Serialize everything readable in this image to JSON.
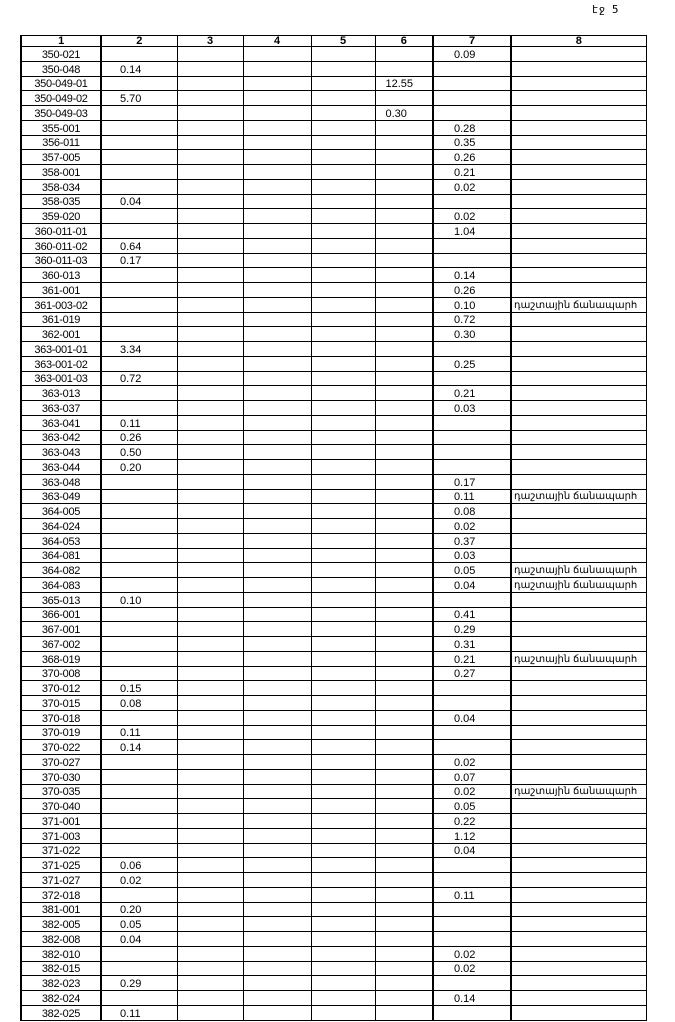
{
  "page_number": "էջ 5",
  "columns": [
    "1",
    "2",
    "3",
    "4",
    "5",
    "6",
    "7",
    "8"
  ],
  "rows": [
    [
      "350-021",
      "",
      "",
      "",
      "",
      "",
      "0.09",
      ""
    ],
    [
      "350-048",
      "0.14",
      "",
      "",
      "",
      "",
      "",
      ""
    ],
    [
      "350-049-01",
      "",
      "",
      "",
      "",
      "12.55",
      "",
      ""
    ],
    [
      "350-049-02",
      "5.70",
      "",
      "",
      "",
      "",
      "",
      ""
    ],
    [
      "350-049-03",
      "",
      "",
      "",
      "",
      "0.30",
      "",
      ""
    ],
    [
      "355-001",
      "",
      "",
      "",
      "",
      "",
      "0.28",
      ""
    ],
    [
      "356-011",
      "",
      "",
      "",
      "",
      "",
      "0.35",
      ""
    ],
    [
      "357-005",
      "",
      "",
      "",
      "",
      "",
      "0.26",
      ""
    ],
    [
      "358-001",
      "",
      "",
      "",
      "",
      "",
      "0.21",
      ""
    ],
    [
      "358-034",
      "",
      "",
      "",
      "",
      "",
      "0.02",
      ""
    ],
    [
      "358-035",
      "0.04",
      "",
      "",
      "",
      "",
      "",
      ""
    ],
    [
      "359-020",
      "",
      "",
      "",
      "",
      "",
      "0.02",
      ""
    ],
    [
      "360-011-01",
      "",
      "",
      "",
      "",
      "",
      "1.04",
      ""
    ],
    [
      "360-011-02",
      "0.64",
      "",
      "",
      "",
      "",
      "",
      ""
    ],
    [
      "360-011-03",
      "0.17",
      "",
      "",
      "",
      "",
      "",
      ""
    ],
    [
      "360-013",
      "",
      "",
      "",
      "",
      "",
      "0.14",
      ""
    ],
    [
      "361-001",
      "",
      "",
      "",
      "",
      "",
      "0.26",
      ""
    ],
    [
      "361-003-02",
      "",
      "",
      "",
      "",
      "",
      "0.10",
      "դաշտային ճանապարհ"
    ],
    [
      "361-019",
      "",
      "",
      "",
      "",
      "",
      "0.72",
      ""
    ],
    [
      "362-001",
      "",
      "",
      "",
      "",
      "",
      "0.30",
      ""
    ],
    [
      "363-001-01",
      "3.34",
      "",
      "",
      "",
      "",
      "",
      ""
    ],
    [
      "363-001-02",
      "",
      "",
      "",
      "",
      "",
      "0.25",
      ""
    ],
    [
      "363-001-03",
      "0.72",
      "",
      "",
      "",
      "",
      "",
      ""
    ],
    [
      "363-013",
      "",
      "",
      "",
      "",
      "",
      "0.21",
      ""
    ],
    [
      "363-037",
      "",
      "",
      "",
      "",
      "",
      "0.03",
      ""
    ],
    [
      "363-041",
      "0.11",
      "",
      "",
      "",
      "",
      "",
      ""
    ],
    [
      "363-042",
      "0.26",
      "",
      "",
      "",
      "",
      "",
      ""
    ],
    [
      "363-043",
      "0.50",
      "",
      "",
      "",
      "",
      "",
      ""
    ],
    [
      "363-044",
      "0.20",
      "",
      "",
      "",
      "",
      "",
      ""
    ],
    [
      "363-048",
      "",
      "",
      "",
      "",
      "",
      "0.17",
      ""
    ],
    [
      "363-049",
      "",
      "",
      "",
      "",
      "",
      "0.11",
      "դաշտային ճանապարհ"
    ],
    [
      "364-005",
      "",
      "",
      "",
      "",
      "",
      "0.08",
      ""
    ],
    [
      "364-024",
      "",
      "",
      "",
      "",
      "",
      "0.02",
      ""
    ],
    [
      "364-053",
      "",
      "",
      "",
      "",
      "",
      "0.37",
      ""
    ],
    [
      "364-081",
      "",
      "",
      "",
      "",
      "",
      "0.03",
      ""
    ],
    [
      "364-082",
      "",
      "",
      "",
      "",
      "",
      "0.05",
      "դաշտային ճանապարհ"
    ],
    [
      "364-083",
      "",
      "",
      "",
      "",
      "",
      "0.04",
      "դաշտային ճանապարհ"
    ],
    [
      "365-013",
      "0.10",
      "",
      "",
      "",
      "",
      "",
      ""
    ],
    [
      "366-001",
      "",
      "",
      "",
      "",
      "",
      "0.41",
      ""
    ],
    [
      "367-001",
      "",
      "",
      "",
      "",
      "",
      "0.29",
      ""
    ],
    [
      "367-002",
      "",
      "",
      "",
      "",
      "",
      "0.31",
      ""
    ],
    [
      "368-019",
      "",
      "",
      "",
      "",
      "",
      "0.21",
      "դաշտային ճանապարհ"
    ],
    [
      "370-008",
      "",
      "",
      "",
      "",
      "",
      "0.27",
      ""
    ],
    [
      "370-012",
      "0.15",
      "",
      "",
      "",
      "",
      "",
      ""
    ],
    [
      "370-015",
      "0.08",
      "",
      "",
      "",
      "",
      "",
      ""
    ],
    [
      "370-018",
      "",
      "",
      "",
      "",
      "",
      "0.04",
      ""
    ],
    [
      "370-019",
      "0.11",
      "",
      "",
      "",
      "",
      "",
      ""
    ],
    [
      "370-022",
      "0.14",
      "",
      "",
      "",
      "",
      "",
      ""
    ],
    [
      "370-027",
      "",
      "",
      "",
      "",
      "",
      "0.02",
      ""
    ],
    [
      "370-030",
      "",
      "",
      "",
      "",
      "",
      "0.07",
      ""
    ],
    [
      "370-035",
      "",
      "",
      "",
      "",
      "",
      "0.02",
      "դաշտային ճանապարհ"
    ],
    [
      "370-040",
      "",
      "",
      "",
      "",
      "",
      "0.05",
      ""
    ],
    [
      "371-001",
      "",
      "",
      "",
      "",
      "",
      "0.22",
      ""
    ],
    [
      "371-003",
      "",
      "",
      "",
      "",
      "",
      "1.12",
      ""
    ],
    [
      "371-022",
      "",
      "",
      "",
      "",
      "",
      "0.04",
      ""
    ],
    [
      "371-025",
      "0.06",
      "",
      "",
      "",
      "",
      "",
      ""
    ],
    [
      "371-027",
      "0.02",
      "",
      "",
      "",
      "",
      "",
      ""
    ],
    [
      "372-018",
      "",
      "",
      "",
      "",
      "",
      "0.11",
      ""
    ],
    [
      "381-001",
      "0.20",
      "",
      "",
      "",
      "",
      "",
      ""
    ],
    [
      "382-005",
      "0.05",
      "",
      "",
      "",
      "",
      "",
      ""
    ],
    [
      "382-008",
      "0.04",
      "",
      "",
      "",
      "",
      "",
      ""
    ],
    [
      "382-010",
      "",
      "",
      "",
      "",
      "",
      "0.02",
      ""
    ],
    [
      "382-015",
      "",
      "",
      "",
      "",
      "",
      "0.02",
      ""
    ],
    [
      "382-023",
      "0.29",
      "",
      "",
      "",
      "",
      "",
      ""
    ],
    [
      "382-024",
      "",
      "",
      "",
      "",
      "",
      "0.14",
      ""
    ],
    [
      "382-025",
      "0.11",
      "",
      "",
      "",
      "",
      "",
      ""
    ]
  ]
}
